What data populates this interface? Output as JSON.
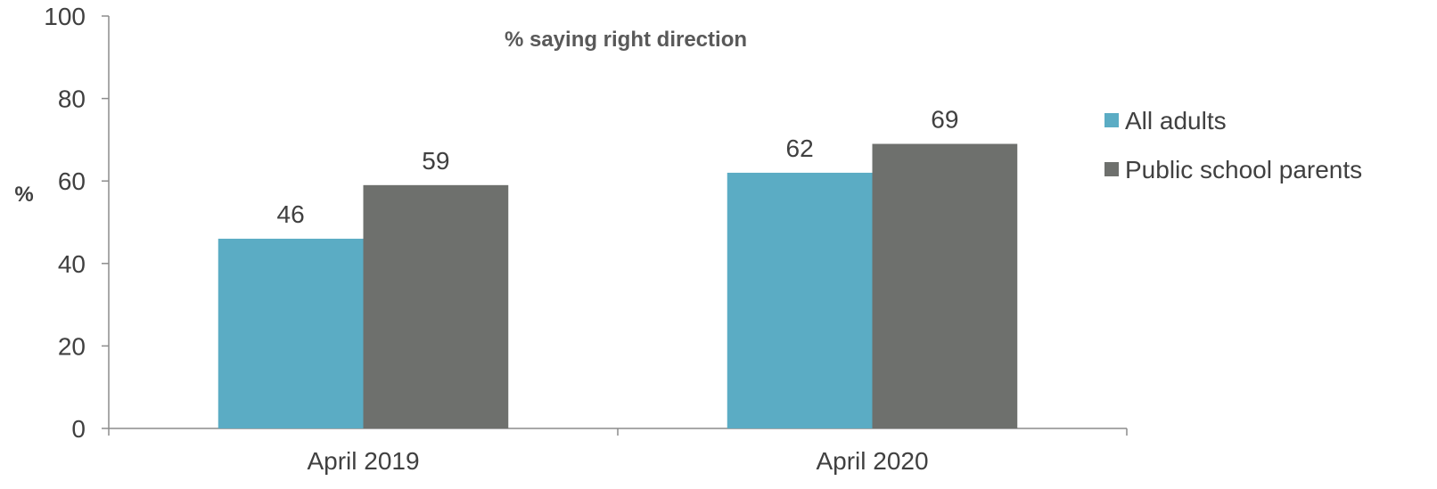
{
  "chart_data": {
    "type": "bar",
    "title": "% saying right direction",
    "ylabel": "%",
    "xlabel": "",
    "categories": [
      "April 2019",
      "April 2020"
    ],
    "series": [
      {
        "name": "All adults",
        "values": [
          46,
          62
        ],
        "color": "#5BACC4"
      },
      {
        "name": "Public school parents",
        "values": [
          59,
          69
        ],
        "color": "#6E706D"
      }
    ],
    "ylim": [
      0,
      100
    ],
    "yticks": [
      0,
      20,
      40,
      60,
      80,
      100
    ],
    "grid": false,
    "legend_position": "right",
    "data_labels": true
  }
}
